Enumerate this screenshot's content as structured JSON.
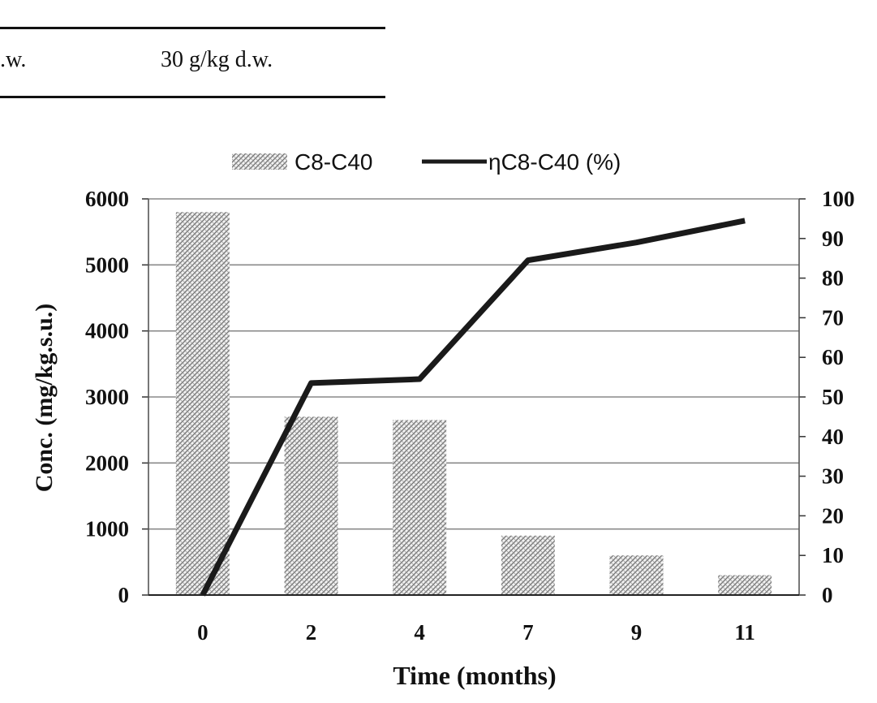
{
  "table_fragment": {
    "row1_col1": "",
    "row1_col2": "30 g/kg d.w.",
    "row2_col1": ".w.",
    "row2_col2": "30 g/kg d.w."
  },
  "chart_data": {
    "type": "bar",
    "categories": [
      "0",
      "2",
      "4",
      "7",
      "9",
      "11"
    ],
    "series": [
      {
        "name": "C8-C40",
        "type": "bar",
        "axis": "left",
        "values": [
          5800,
          2700,
          2650,
          900,
          600,
          300
        ]
      },
      {
        "name": "ηC8-C40 (%)",
        "type": "line",
        "axis": "right",
        "values": [
          0,
          53.5,
          54.5,
          84.5,
          89,
          94.5
        ]
      }
    ],
    "title": "",
    "xlabel": "Time (months)",
    "ylabel": "Conc. (mg/kg.s.u.)",
    "y2label": "",
    "ylim": [
      0,
      6000
    ],
    "y2lim": [
      0,
      100
    ],
    "yticks": [
      "0",
      "1000",
      "2000",
      "3000",
      "4000",
      "5000",
      "6000"
    ],
    "y2ticks": [
      "0",
      "10",
      "20",
      "30",
      "40",
      "50",
      "60",
      "70",
      "80",
      "90",
      "100"
    ],
    "grid": true,
    "legend": "top",
    "colors": {
      "bar_pattern": "#8a8a8a",
      "line": "#1a1a1a",
      "grid": "#8a8a8a"
    }
  }
}
